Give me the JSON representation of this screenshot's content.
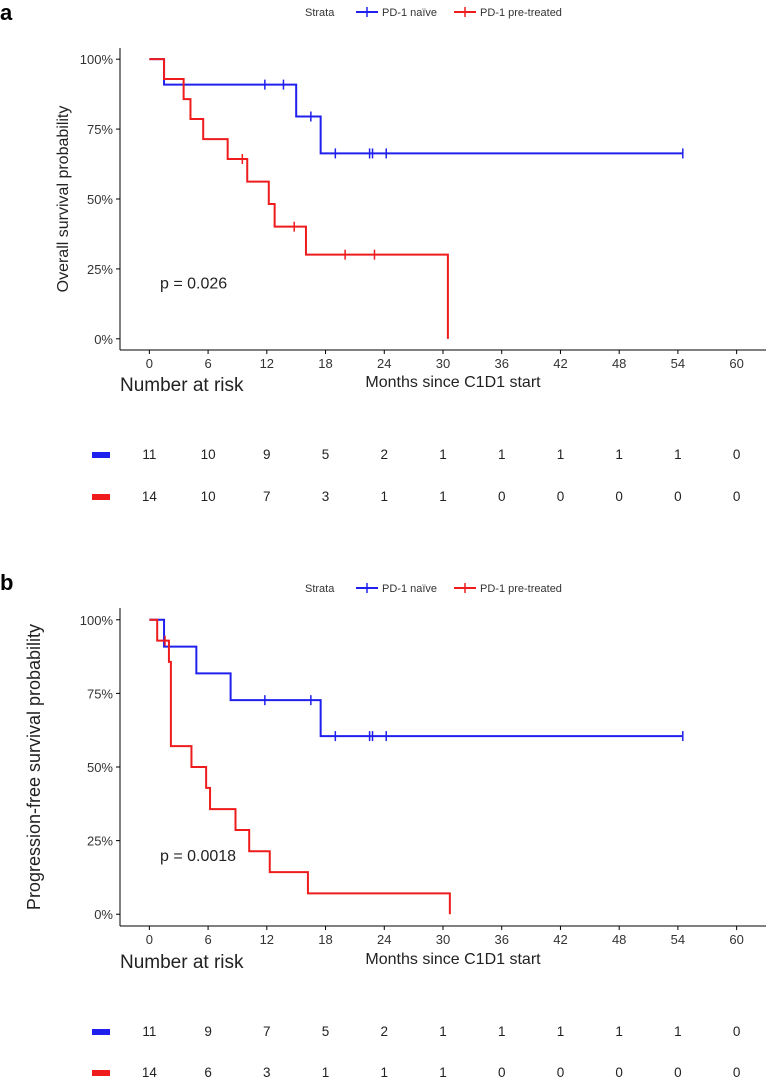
{
  "chart_data": [
    {
      "type": "line",
      "subtype": "kaplan-meier",
      "panel": "a",
      "legend_title": "Strata",
      "series": [
        {
          "name": "PD-1 naïve",
          "color": "#2020ee",
          "steps": [
            [
              0,
              1
            ],
            [
              1.5,
              0.909
            ],
            [
              15,
              0.795
            ],
            [
              17.5,
              0.663
            ],
            [
              54.5,
              0.663
            ]
          ],
          "censors": [
            [
              11.8,
              0.909
            ],
            [
              13.7,
              0.909
            ],
            [
              16.5,
              0.795
            ],
            [
              19,
              0.663
            ],
            [
              22.5,
              0.663
            ],
            [
              22.8,
              0.663
            ],
            [
              24.2,
              0.663
            ],
            [
              54.5,
              0.663
            ]
          ]
        },
        {
          "name": "PD-1 pre-treated",
          "color": "#ee1c1c",
          "steps": [
            [
              0,
              1
            ],
            [
              1.5,
              0.929
            ],
            [
              3.5,
              0.857
            ],
            [
              4.2,
              0.786
            ],
            [
              5.5,
              0.714
            ],
            [
              8,
              0.643
            ],
            [
              10,
              0.562
            ],
            [
              12.2,
              0.482
            ],
            [
              12.8,
              0.401
            ],
            [
              16,
              0.301
            ],
            [
              30.5,
              0.0
            ],
            [
              30.5,
              0.0
            ]
          ],
          "censors": [
            [
              9.5,
              0.643
            ],
            [
              14.8,
              0.401
            ],
            [
              20,
              0.301
            ],
            [
              23,
              0.301
            ]
          ]
        }
      ],
      "xlabel": "Months since C1D1 start",
      "ylabel": "Overall survival probability",
      "xlim": [
        -3,
        63
      ],
      "ylim": [
        -0.04,
        1.04
      ],
      "xticks": [
        0,
        6,
        12,
        18,
        24,
        30,
        36,
        42,
        48,
        54,
        60
      ],
      "yticks": [
        0,
        0.25,
        0.5,
        0.75,
        1
      ],
      "ytick_labels": [
        "0%",
        "25%",
        "50%",
        "75%",
        "100%"
      ],
      "p_value": "p = 0.026",
      "risk_table": {
        "title": "Number at risk",
        "rows": [
          {
            "color": "#2020ee",
            "values": [
              "11",
              "10",
              "9",
              "5",
              "2",
              "1",
              "1",
              "1",
              "1",
              "1",
              "0"
            ]
          },
          {
            "color": "#ee1c1c",
            "values": [
              "14",
              "10",
              "7",
              "3",
              "1",
              "1",
              "0",
              "0",
              "0",
              "0",
              "0"
            ]
          }
        ]
      }
    },
    {
      "type": "line",
      "subtype": "kaplan-meier",
      "panel": "b",
      "legend_title": "Strata",
      "series": [
        {
          "name": "PD-1 naïve",
          "color": "#2020ee",
          "steps": [
            [
              0,
              1
            ],
            [
              1.5,
              0.909
            ],
            [
              4.8,
              0.818
            ],
            [
              8.3,
              0.727
            ],
            [
              17.5,
              0.605
            ],
            [
              54.5,
              0.605
            ]
          ],
          "censors": [
            [
              11.8,
              0.727
            ],
            [
              16.5,
              0.727
            ],
            [
              19,
              0.605
            ],
            [
              22.5,
              0.605
            ],
            [
              22.8,
              0.605
            ],
            [
              24.2,
              0.605
            ],
            [
              54.5,
              0.605
            ]
          ]
        },
        {
          "name": "PD-1 pre-treated",
          "color": "#ee1c1c",
          "steps": [
            [
              0,
              1
            ],
            [
              0.8,
              0.929
            ],
            [
              2,
              0.857
            ],
            [
              2.2,
              0.571
            ],
            [
              4.3,
              0.5
            ],
            [
              5.8,
              0.429
            ],
            [
              6.2,
              0.357
            ],
            [
              8.8,
              0.286
            ],
            [
              10.2,
              0.214
            ],
            [
              12.3,
              0.143
            ],
            [
              16.2,
              0.071
            ],
            [
              30.7,
              0.071
            ],
            [
              30.7,
              0.0
            ]
          ],
          "censors": [
            [
              1.6,
              0.929
            ]
          ]
        }
      ],
      "xlabel": "Months since C1D1 start",
      "ylabel": "Progression-free survival probability",
      "xlim": [
        -3,
        63
      ],
      "ylim": [
        -0.04,
        1.04
      ],
      "xticks": [
        0,
        6,
        12,
        18,
        24,
        30,
        36,
        42,
        48,
        54,
        60
      ],
      "yticks": [
        0,
        0.25,
        0.5,
        0.75,
        1
      ],
      "ytick_labels": [
        "0%",
        "25%",
        "50%",
        "75%",
        "100%"
      ],
      "p_value": "p = 0.0018",
      "risk_table": {
        "title": "Number at risk",
        "rows": [
          {
            "color": "#2020ee",
            "values": [
              "11",
              "9",
              "7",
              "5",
              "2",
              "1",
              "1",
              "1",
              "1",
              "1",
              "0"
            ]
          },
          {
            "color": "#ee1c1c",
            "values": [
              "14",
              "6",
              "3",
              "1",
              "1",
              "1",
              "0",
              "0",
              "0",
              "0",
              "0"
            ]
          }
        ]
      }
    }
  ]
}
